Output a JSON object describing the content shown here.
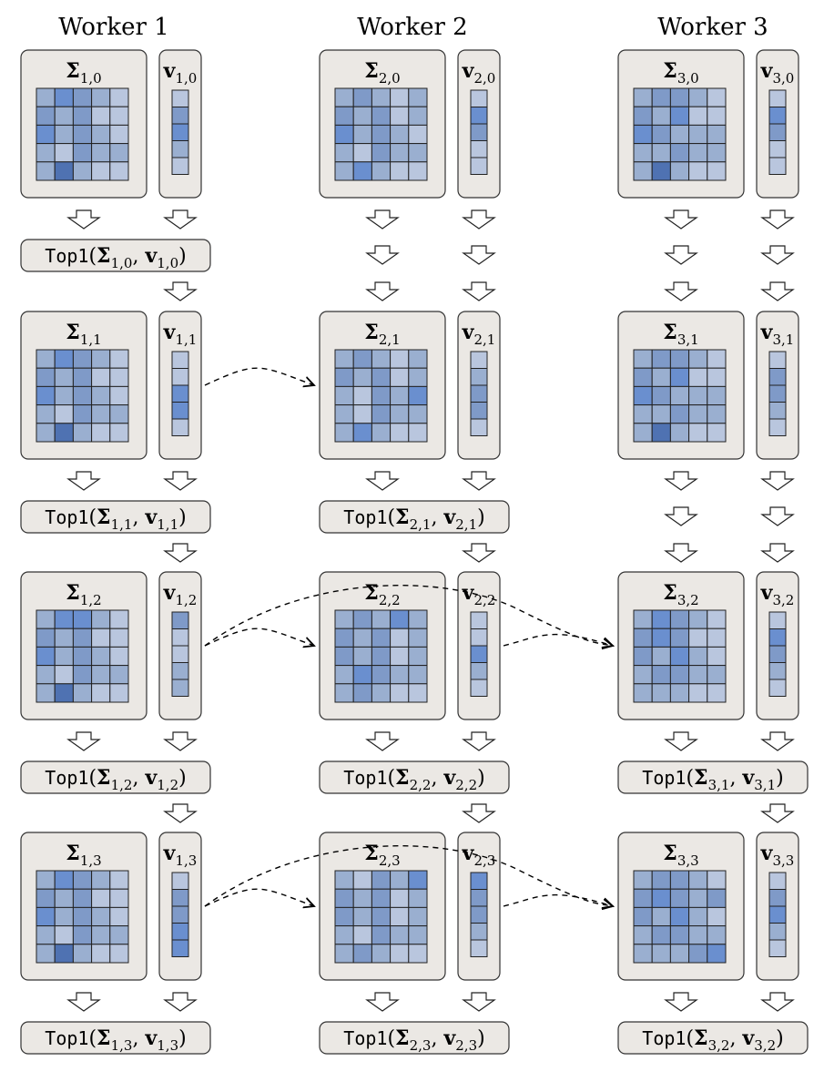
{
  "diagram": {
    "columns": [
      {
        "title": "Worker 1",
        "index": "1",
        "stages": [
          {
            "step": "0",
            "matrix": [
              [
                2,
                4,
                3,
                2,
                1
              ],
              [
                3,
                2,
                3,
                1,
                1
              ],
              [
                4,
                2,
                3,
                2,
                1
              ],
              [
                2,
                1,
                3,
                2,
                2
              ],
              [
                2,
                5,
                2,
                1,
                1
              ]
            ],
            "vector": [
              1,
              3,
              4,
              2,
              1
            ],
            "top1": true,
            "top1_label": "1,0"
          },
          {
            "step": "1",
            "matrix": [
              [
                2,
                4,
                3,
                2,
                1
              ],
              [
                3,
                2,
                3,
                1,
                1
              ],
              [
                4,
                2,
                3,
                2,
                1
              ],
              [
                2,
                1,
                3,
                2,
                2
              ],
              [
                2,
                5,
                2,
                1,
                1
              ]
            ],
            "vector": [
              1,
              1,
              4,
              4,
              1
            ],
            "top1": true,
            "top1_label": "1,1"
          },
          {
            "step": "2",
            "matrix": [
              [
                2,
                4,
                4,
                2,
                1
              ],
              [
                3,
                2,
                3,
                1,
                1
              ],
              [
                4,
                2,
                3,
                2,
                1
              ],
              [
                2,
                1,
                3,
                2,
                2
              ],
              [
                2,
                5,
                2,
                1,
                1
              ]
            ],
            "vector": [
              3,
              1,
              1,
              2,
              2
            ],
            "top1": true,
            "top1_label": "1,2"
          },
          {
            "step": "3",
            "matrix": [
              [
                2,
                4,
                3,
                2,
                1
              ],
              [
                3,
                2,
                3,
                1,
                1
              ],
              [
                4,
                2,
                3,
                2,
                1
              ],
              [
                2,
                1,
                3,
                2,
                2
              ],
              [
                2,
                5,
                2,
                1,
                1
              ]
            ],
            "vector": [
              1,
              3,
              3,
              4,
              4
            ],
            "top1": true,
            "top1_label": "1,3"
          }
        ]
      },
      {
        "title": "Worker 2",
        "index": "2",
        "stages": [
          {
            "step": "0",
            "matrix": [
              [
                2,
                3,
                2,
                1,
                2
              ],
              [
                3,
                2,
                3,
                1,
                2
              ],
              [
                4,
                2,
                3,
                2,
                1
              ],
              [
                2,
                1,
                3,
                2,
                2
              ],
              [
                2,
                4,
                2,
                1,
                1
              ]
            ],
            "vector": [
              1,
              4,
              3,
              1,
              1
            ],
            "top1": false
          },
          {
            "step": "1",
            "matrix": [
              [
                2,
                3,
                2,
                1,
                2
              ],
              [
                3,
                2,
                3,
                1,
                2
              ],
              [
                2,
                1,
                3,
                2,
                4
              ],
              [
                2,
                1,
                3,
                2,
                2
              ],
              [
                2,
                4,
                2,
                1,
                1
              ]
            ],
            "vector": [
              1,
              2,
              3,
              3,
              1
            ],
            "top1": true,
            "top1_label": "2,1"
          },
          {
            "step": "2",
            "matrix": [
              [
                2,
                3,
                2,
                4,
                2
              ],
              [
                3,
                2,
                3,
                1,
                2
              ],
              [
                3,
                2,
                3,
                1,
                2
              ],
              [
                2,
                4,
                3,
                2,
                2
              ],
              [
                2,
                3,
                2,
                1,
                1
              ]
            ],
            "vector": [
              1,
              1,
              4,
              2,
              1
            ],
            "top1": true,
            "top1_label": "2,2"
          },
          {
            "step": "3",
            "matrix": [
              [
                2,
                1,
                3,
                2,
                4
              ],
              [
                3,
                2,
                3,
                1,
                2
              ],
              [
                3,
                2,
                3,
                1,
                2
              ],
              [
                2,
                1,
                3,
                2,
                2
              ],
              [
                2,
                3,
                2,
                1,
                1
              ]
            ],
            "vector": [
              4,
              3,
              3,
              2,
              1
            ],
            "top1": true,
            "top1_label": "2,3"
          }
        ]
      },
      {
        "title": "Worker 3",
        "index": "3",
        "stages": [
          {
            "step": "0",
            "matrix": [
              [
                2,
                3,
                3,
                2,
                1
              ],
              [
                3,
                2,
                4,
                1,
                1
              ],
              [
                4,
                3,
                2,
                2,
                2
              ],
              [
                2,
                2,
                3,
                2,
                2
              ],
              [
                2,
                5,
                2,
                1,
                1
              ]
            ],
            "vector": [
              1,
              4,
              3,
              1,
              1
            ],
            "top1": false
          },
          {
            "step": "1",
            "matrix": [
              [
                2,
                3,
                3,
                2,
                1
              ],
              [
                3,
                2,
                4,
                1,
                1
              ],
              [
                4,
                3,
                2,
                2,
                2
              ],
              [
                2,
                2,
                3,
                2,
                2
              ],
              [
                2,
                5,
                2,
                1,
                1
              ]
            ],
            "vector": [
              1,
              3,
              3,
              2,
              1
            ],
            "top1": false
          },
          {
            "step": "2",
            "matrix": [
              [
                2,
                4,
                3,
                2,
                1
              ],
              [
                3,
                4,
                3,
                1,
                1
              ],
              [
                3,
                2,
                4,
                2,
                1
              ],
              [
                2,
                3,
                3,
                2,
                2
              ],
              [
                2,
                2,
                2,
                1,
                1
              ]
            ],
            "vector": [
              1,
              4,
              3,
              2,
              1
            ],
            "top1": true,
            "top1_label": "3,1"
          },
          {
            "step": "3",
            "matrix": [
              [
                2,
                3,
                3,
                2,
                1
              ],
              [
                3,
                4,
                3,
                2,
                3
              ],
              [
                3,
                2,
                4,
                2,
                1
              ],
              [
                2,
                3,
                3,
                2,
                2
              ],
              [
                2,
                2,
                2,
                3,
                4
              ]
            ],
            "vector": [
              1,
              3,
              4,
              2,
              1
            ],
            "top1": true,
            "top1_label": "3,2"
          }
        ]
      }
    ],
    "matrix_symbol": "Σ",
    "vector_symbol": "v",
    "top1_func": "Top1",
    "shades": [
      "#ffffff",
      "#b9c6de",
      "#9aafd0",
      "#7f9ac8",
      "#6a8fcf",
      "#4f72b2"
    ],
    "transfers": [
      {
        "from": "1,1",
        "to": "2,1"
      },
      {
        "from": "1,2",
        "to": "2,2"
      },
      {
        "from": "1,2",
        "to": "3,2"
      },
      {
        "from": "2,2",
        "to": "3,2"
      },
      {
        "from": "1,3",
        "to": "2,3"
      },
      {
        "from": "1,3",
        "to": "3,3"
      },
      {
        "from": "2,3",
        "to": "3,3"
      }
    ]
  }
}
